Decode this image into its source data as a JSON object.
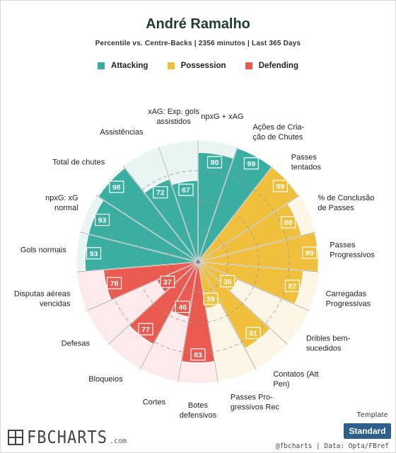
{
  "header": {
    "title": "André Ramalho",
    "subtitle": "Percentile vs. Centre-Backs | 2356 minutos | Last 365 Days"
  },
  "legend": [
    {
      "label": "Attacking",
      "color": "#3aafa1"
    },
    {
      "label": "Possession",
      "color": "#f0c03c"
    },
    {
      "label": "Defending",
      "color": "#eb5a50"
    }
  ],
  "chart_data": {
    "type": "pizza",
    "scale": [
      0,
      100
    ],
    "groups": [
      {
        "name": "Attacking",
        "color": "#3aafa1",
        "background": "#e8f5f3"
      },
      {
        "name": "Possession",
        "color": "#f0c03c",
        "background": "#fdf6e6"
      },
      {
        "name": "Defending",
        "color": "#eb5a50",
        "background": "#fdeaea"
      }
    ],
    "metrics": [
      {
        "label": "npxG + xAG",
        "value": 90,
        "group": "Attacking"
      },
      {
        "label": "Ações de Cria-\nção de Chutes",
        "value": 99,
        "group": "Attacking"
      },
      {
        "label": "Passes\ntentados",
        "value": 99,
        "group": "Possession"
      },
      {
        "label": "% de Conclusão\nde Passes",
        "value": 88,
        "group": "Possession"
      },
      {
        "label": "Passes\nProgressivos",
        "value": 99,
        "group": "Possession"
      },
      {
        "label": "Carregadas\nProgressivas",
        "value": 87,
        "group": "Possession"
      },
      {
        "label": "Dribles bem-\nsucedidos",
        "value": 36,
        "group": "Possession"
      },
      {
        "label": "Contatos (Att\nPen)",
        "value": 81,
        "group": "Possession"
      },
      {
        "label": "Passes Pro-\ngressivos Rec",
        "value": 39,
        "group": "Possession"
      },
      {
        "label": "Botes\ndefensivos",
        "value": 83,
        "group": "Defending"
      },
      {
        "label": "Cortes",
        "value": 46,
        "group": "Defending"
      },
      {
        "label": "Bloqueios",
        "value": 77,
        "group": "Defending"
      },
      {
        "label": "Defesas",
        "value": 37,
        "group": "Defending"
      },
      {
        "label": "Disputas aéreas\nvencidas",
        "value": 78,
        "group": "Defending"
      },
      {
        "label": "Gols normais",
        "value": 93,
        "group": "Attacking"
      },
      {
        "label": "npxG: xG\nnormal",
        "value": 93,
        "group": "Attacking"
      },
      {
        "label": "Total de chutes",
        "value": 98,
        "group": "Attacking"
      },
      {
        "label": "Assistências",
        "value": 72,
        "group": "Attacking"
      },
      {
        "label": "xAG: Exp. gols\nassistidos",
        "value": 67,
        "group": "Attacking"
      }
    ]
  },
  "footer": {
    "brand": "FBCHARTS",
    "brand_suffix": ".com",
    "credit": "@fbcharts | Data: Opta/FBref",
    "template_label": "Template",
    "template_value": "Standard"
  }
}
